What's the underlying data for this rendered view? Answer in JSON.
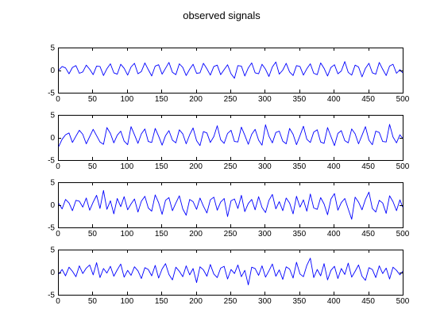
{
  "figure": {
    "title": "observed signals"
  },
  "colors": {
    "background": "#ffffff",
    "axes": "#000000",
    "line": "#0000ff"
  },
  "chart_data": [
    {
      "type": "line",
      "title": "",
      "xlabel": "",
      "ylabel": "",
      "xlim": [
        0,
        500
      ],
      "ylim": [
        -5,
        5
      ],
      "xticks": [
        0,
        50,
        100,
        150,
        200,
        250,
        300,
        350,
        400,
        450,
        500
      ],
      "yticks": [
        -5,
        0,
        5
      ],
      "grid": false,
      "series": [
        {
          "color": "#0000ff",
          "sampling_step": 5,
          "x_start": 1,
          "y": [
            0.0,
            0.8,
            0.5,
            -0.8,
            0.6,
            1.0,
            -0.7,
            -0.4,
            1.1,
            0.2,
            -1.0,
            0.9,
            0.8,
            -1.2,
            0.3,
            1.4,
            -0.6,
            -0.9,
            1.3,
            0.4,
            -1.1,
            0.7,
            1.5,
            -0.8,
            -0.3,
            1.6,
            0.1,
            -1.3,
            0.9,
            1.2,
            -0.9,
            0.4,
            1.7,
            -0.5,
            -1.0,
            1.4,
            0.6,
            -1.2,
            0.2,
            1.3,
            -0.7,
            -0.6,
            1.5,
            0.3,
            -1.1,
            0.8,
            1.1,
            -1.0,
            0.1,
            1.2,
            -0.8,
            -1.8,
            1.0,
            0.9,
            -1.3,
            0.5,
            1.6,
            -0.6,
            -0.8,
            1.3,
            0.2,
            -1.4,
            0.7,
            1.8,
            -0.9,
            0.0,
            1.5,
            -0.4,
            -1.2,
            1.0,
            0.8,
            -1.1,
            0.3,
            1.4,
            -0.7,
            -1.0,
            1.6,
            0.4,
            -1.3,
            0.6,
            1.2,
            -0.8,
            -0.2,
            1.9,
            -0.5,
            -1.1,
            1.1,
            0.7,
            -1.5,
            0.4,
            1.5,
            -0.6,
            -0.9,
            1.7,
            0.2,
            -1.2,
            0.9,
            1.3,
            -0.7,
            0.1,
            -0.6
          ]
        }
      ]
    },
    {
      "type": "line",
      "title": "",
      "xlabel": "",
      "ylabel": "",
      "xlim": [
        0,
        500
      ],
      "ylim": [
        -5,
        5
      ],
      "xticks": [
        0,
        50,
        100,
        150,
        200,
        250,
        300,
        350,
        400,
        450,
        500
      ],
      "yticks": [
        -5,
        0,
        5
      ],
      "grid": false,
      "series": [
        {
          "color": "#0000ff",
          "sampling_step": 5,
          "x_start": 1,
          "y": [
            -2.0,
            -0.4,
            0.6,
            1.0,
            -1.1,
            0.3,
            1.6,
            0.7,
            -1.4,
            0.2,
            1.8,
            0.4,
            -1.0,
            -1.5,
            2.2,
            0.9,
            -1.2,
            0.5,
            1.4,
            -0.8,
            -1.6,
            2.4,
            0.6,
            -1.3,
            0.8,
            1.9,
            -0.9,
            -1.1,
            2.0,
            0.3,
            -1.7,
            0.4,
            1.5,
            -0.6,
            -1.2,
            1.7,
            0.8,
            -1.4,
            0.6,
            2.1,
            -0.7,
            -1.8,
            1.3,
            1.0,
            -1.1,
            0.2,
            2.6,
            -0.5,
            -1.3,
            0.9,
            1.6,
            -0.9,
            -1.0,
            2.3,
            0.5,
            -1.5,
            0.7,
            1.8,
            -0.6,
            -1.7,
            2.8,
            0.3,
            -1.2,
            1.1,
            1.4,
            -0.8,
            -1.4,
            2.0,
            0.7,
            -1.6,
            0.4,
            2.5,
            -0.4,
            -1.1,
            1.2,
            1.7,
            -1.0,
            -1.3,
            2.2,
            0.2,
            -1.8,
            0.9,
            1.5,
            -0.7,
            -1.2,
            1.9,
            0.8,
            -1.4,
            0.5,
            2.4,
            -0.6,
            -1.6,
            1.4,
            1.1,
            -0.9,
            -1.0,
            2.9,
            0.1,
            -1.2,
            0.6,
            -0.2
          ]
        }
      ]
    },
    {
      "type": "line",
      "title": "",
      "xlabel": "",
      "ylabel": "",
      "xlim": [
        0,
        500
      ],
      "ylim": [
        -5,
        5
      ],
      "xticks": [
        0,
        50,
        100,
        150,
        200,
        250,
        300,
        350,
        400,
        450,
        500
      ],
      "yticks": [
        -5,
        0,
        5
      ],
      "grid": false,
      "series": [
        {
          "color": "#0000ff",
          "sampling_step": 5,
          "x_start": 1,
          "y": [
            0.3,
            -0.9,
            1.2,
            0.4,
            -1.3,
            1.0,
            0.8,
            -0.5,
            1.5,
            -1.2,
            0.6,
            2.1,
            -0.8,
            3.2,
            -1.0,
            0.9,
            -2.0,
            1.4,
            -0.4,
            1.8,
            -1.1,
            0.2,
            1.3,
            -1.6,
            0.8,
            1.9,
            -0.7,
            -1.4,
            2.2,
            0.5,
            -2.1,
            1.0,
            1.6,
            -1.3,
            0.4,
            2.0,
            -0.9,
            -2.3,
            1.2,
            0.7,
            -1.0,
            1.5,
            -0.3,
            -1.8,
            1.1,
            1.7,
            -1.2,
            0.6,
            1.4,
            -2.6,
            0.9,
            1.3,
            -0.8,
            2.1,
            -1.5,
            0.3,
            1.2,
            -1.1,
            1.8,
            -0.6,
            -1.7,
            1.0,
            2.3,
            -0.9,
            0.7,
            -1.3,
            1.5,
            0.4,
            -2.0,
            1.9,
            -0.5,
            1.1,
            -1.4,
            2.4,
            -0.7,
            -1.0,
            1.6,
            0.2,
            -2.2,
            1.3,
            2.5,
            -1.2,
            0.5,
            1.4,
            -0.9,
            -3.2,
            1.7,
            0.6,
            -1.1,
            1.2,
            2.8,
            -0.8,
            -1.6,
            1.0,
            0.4,
            -1.9,
            2.0,
            0.7,
            -1.3,
            1.1,
            -0.5
          ]
        }
      ]
    },
    {
      "type": "line",
      "title": "",
      "xlabel": "",
      "ylabel": "",
      "xlim": [
        0,
        500
      ],
      "ylim": [
        -5,
        5
      ],
      "xticks": [
        0,
        50,
        100,
        150,
        200,
        250,
        300,
        350,
        400,
        450,
        500
      ],
      "yticks": [
        -5,
        0,
        5
      ],
      "grid": false,
      "series": [
        {
          "color": "#0000ff",
          "sampling_step": 5,
          "x_start": 1,
          "y": [
            -0.4,
            0.6,
            -0.8,
            1.1,
            0.2,
            -1.0,
            1.4,
            -0.3,
            0.9,
            1.6,
            -0.6,
            2.1,
            -1.2,
            0.8,
            -0.2,
            1.3,
            -0.9,
            0.5,
            1.8,
            -1.1,
            0.4,
            -0.7,
            1.2,
            0.3,
            -1.4,
            1.0,
            0.6,
            -0.8,
            1.5,
            -1.3,
            0.7,
            1.9,
            -0.5,
            -1.7,
            1.1,
            0.2,
            -1.0,
            1.4,
            -0.6,
            0.8,
            -2.3,
            1.2,
            0.5,
            -0.9,
            1.7,
            -0.4,
            -1.2,
            0.9,
            1.3,
            -1.5,
            0.6,
            -0.3,
            1.6,
            -1.0,
            0.4,
            -2.8,
            1.1,
            0.8,
            -0.7,
            1.4,
            -1.1,
            0.3,
            1.8,
            -0.9,
            0.5,
            -1.6,
            1.2,
            0.7,
            -1.3,
            2.2,
            -0.4,
            -1.0,
            1.5,
            3.1,
            -1.2,
            0.6,
            -0.8,
            1.9,
            -1.7,
            0.4,
            1.3,
            -1.4,
            0.8,
            -0.5,
            2.0,
            -1.1,
            0.2,
            1.6,
            -0.9,
            -1.8,
            1.0,
            0.6,
            -1.2,
            1.4,
            -0.3,
            0.9,
            -1.5,
            1.1,
            0.4,
            -0.6,
            0.2
          ]
        }
      ]
    }
  ]
}
